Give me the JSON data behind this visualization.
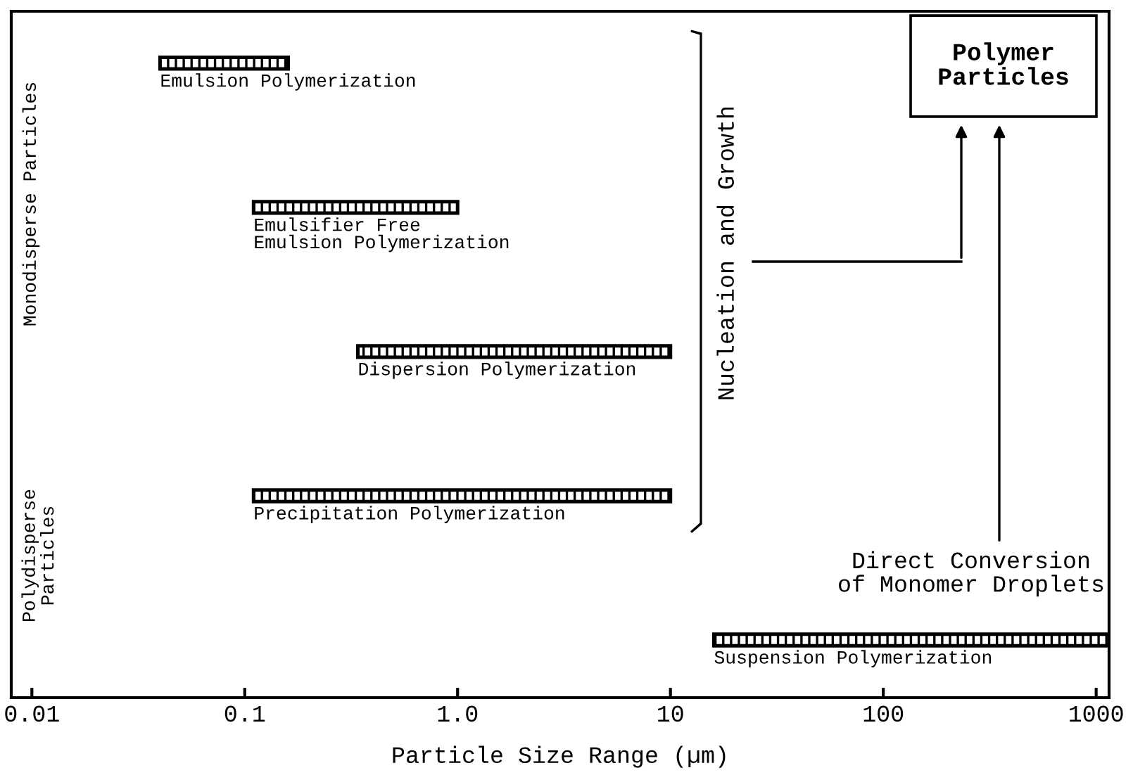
{
  "chart_data": {
    "type": "bar",
    "orientation": "horizontal",
    "log": "x",
    "tick_labels": "x",
    "grid": false,
    "xlabel": "Particle Size Range (µm)",
    "categories": [
      "Emulsion Polymerization",
      "Emulsifier Free\nEmulsion Polymerization",
      "Dispersion Polymerization",
      "Precipitation Polymerization",
      "Suspension Polymerization"
    ],
    "base": [
      0.04,
      0.11,
      0.34,
      0.11,
      16
    ],
    "values": [
      0.12,
      0.89,
      9.66,
      9.89,
      1134
    ],
    "color": "#000000",
    "xlim": [
      0.008,
      1150
    ],
    "xticks": [
      0.01,
      0.1,
      {
        "value": 1,
        "label": "1.0"
      },
      10,
      100,
      1000
    ],
    "annotations": [
      "Monodisperse Particles",
      "Polydisperse\nParticles",
      "Nucleation and Growth",
      "Polymer\nParticles",
      "Direct Conversion\nof Monomer Droplets"
    ]
  }
}
